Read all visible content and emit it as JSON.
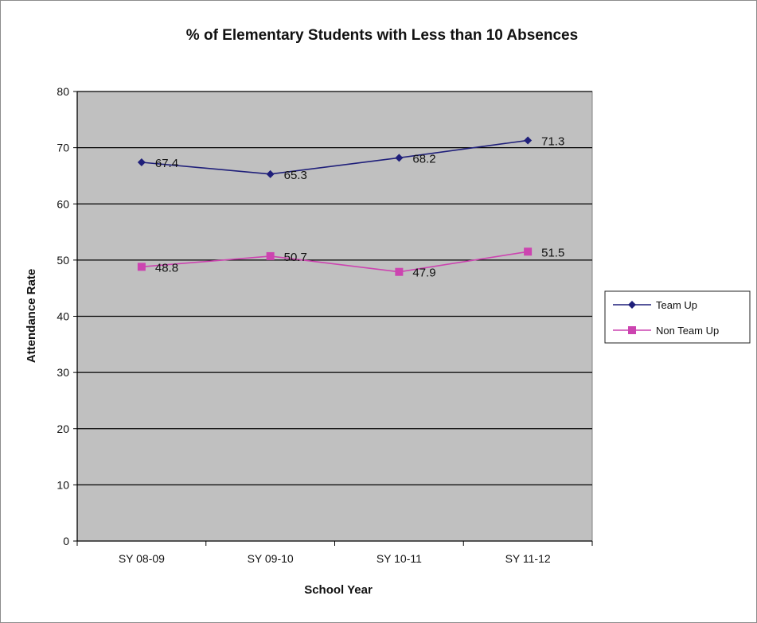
{
  "chart_data": {
    "type": "line",
    "title": "% of Elementary Students with Less than 10 Absences",
    "xlabel": "School Year",
    "ylabel": "Attendance Rate",
    "categories": [
      "SY 08-09",
      "SY 09-10",
      "SY 10-11",
      "SY 11-12"
    ],
    "ylim": [
      0,
      80
    ],
    "yticks": [
      0,
      10,
      20,
      30,
      40,
      50,
      60,
      70,
      80
    ],
    "grid": true,
    "legend_position": "right",
    "plot_background": "#c0c0c0",
    "series": [
      {
        "name": "Team Up",
        "values": [
          67.4,
          65.3,
          68.2,
          71.3
        ],
        "labels": [
          "67.4",
          "65.3",
          "68.2",
          "71.3"
        ],
        "color": "#1f1f7a",
        "marker": "diamond"
      },
      {
        "name": "Non Team Up",
        "values": [
          48.8,
          50.7,
          47.9,
          51.5
        ],
        "labels": [
          "48.8",
          "50.7",
          "47.9",
          "51.5"
        ],
        "color": "#cc44b0",
        "marker": "square"
      }
    ]
  }
}
